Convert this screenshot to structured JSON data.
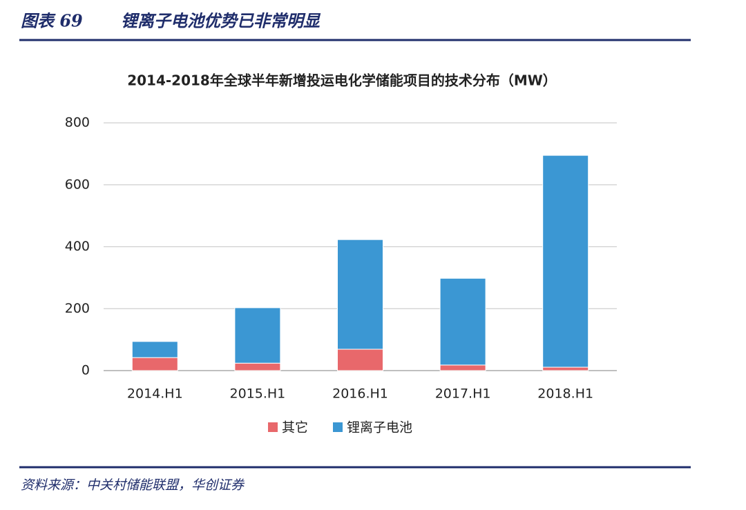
{
  "header": {
    "title": "图表 69",
    "subtitle": "锂离子电池优势已非常明显"
  },
  "chart_data": {
    "type": "bar",
    "stacked": true,
    "title": "2014-2018年全球半年新增投运电化学储能项目的技术分布（MW）",
    "categories": [
      "2014.H1",
      "2015.H1",
      "2016.H1",
      "2017.H1",
      "2018.H1"
    ],
    "series": [
      {
        "name": "其它",
        "color": "#e8686b",
        "values": [
          42,
          24,
          69,
          18,
          11
        ]
      },
      {
        "name": "锂离子电池",
        "color": "#3b97d3",
        "values": [
          52,
          179,
          354,
          280,
          684
        ]
      }
    ],
    "ylim": [
      0,
      800
    ],
    "yticks": [
      0,
      200,
      400,
      600,
      800
    ],
    "grid": true,
    "legend": "bottom"
  },
  "source": "资料来源：中关村储能联盟，华创证券"
}
